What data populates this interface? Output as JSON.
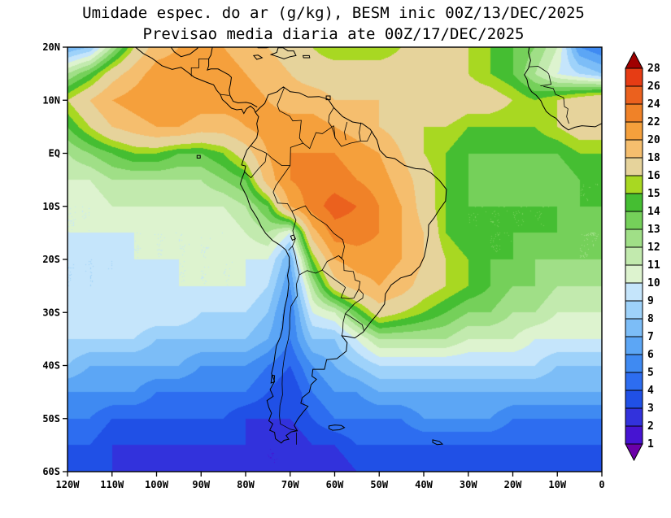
{
  "title": {
    "line1": "Umidade espec. do ar (g/kg), BESM inic 00Z/13/DEC/2025",
    "line2": "Previsao media diaria ate 00Z/17/DEC/2025"
  },
  "axes": {
    "x_labels": [
      "120W",
      "110W",
      "100W",
      "90W",
      "80W",
      "70W",
      "60W",
      "50W",
      "40W",
      "30W",
      "20W",
      "10W",
      "0"
    ],
    "x_lons": [
      -120,
      -110,
      -100,
      -90,
      -80,
      -70,
      -60,
      -50,
      -40,
      -30,
      -20,
      -10,
      0
    ],
    "y_labels": [
      "20N",
      "10N",
      "EQ",
      "10S",
      "20S",
      "30S",
      "40S",
      "50S",
      "60S"
    ],
    "y_lats": [
      20,
      10,
      0,
      -10,
      -20,
      -30,
      -40,
      -50,
      -60
    ]
  },
  "colorbar": {
    "labels": [
      "28",
      "26",
      "24",
      "22",
      "20",
      "18",
      "16",
      "15",
      "14",
      "13",
      "12",
      "11",
      "10",
      "9",
      "8",
      "7",
      "6",
      "5",
      "4",
      "3",
      "2",
      "1"
    ]
  },
  "chart_data": {
    "type": "heatmap",
    "variable": "Umidade especifica do ar",
    "units": "g/kg",
    "model": "BESM",
    "init_time": "00Z/13/DEC/2025",
    "mean_until": "00Z/17/DEC/2025",
    "lon_range": [
      -120,
      0
    ],
    "lat_range": [
      -60,
      20
    ],
    "lats": [
      20,
      15,
      10,
      5,
      0,
      -5,
      -10,
      -15,
      -20,
      -25,
      -30,
      -35,
      -40,
      -45,
      -50,
      -55,
      -60
    ],
    "lons": [
      -120,
      -115,
      -110,
      -105,
      -100,
      -95,
      -90,
      -85,
      -80,
      -75,
      -70,
      -65,
      -60,
      -55,
      -50,
      -45,
      -40,
      -35,
      -30,
      -25,
      -20,
      -15,
      -10,
      -5,
      0
    ],
    "values_g_per_kg": [
      [
        7,
        8,
        12,
        16,
        19,
        20,
        20,
        20,
        19,
        18,
        17,
        16,
        15,
        15,
        15,
        16,
        16,
        17,
        16,
        15,
        14,
        13,
        11,
        6,
        5
      ],
      [
        12,
        14,
        17,
        19,
        21,
        21,
        21,
        21,
        20,
        19,
        18,
        17,
        17,
        17,
        17,
        17,
        17,
        17,
        16,
        15,
        14,
        12,
        10,
        9,
        8
      ],
      [
        16,
        18,
        20,
        21,
        22,
        22,
        21,
        21,
        21,
        20,
        19,
        19,
        18,
        18,
        18,
        18,
        18,
        18,
        17,
        17,
        16,
        15,
        16,
        17,
        18
      ],
      [
        14,
        16,
        18,
        19,
        20,
        20,
        19,
        19,
        20,
        21,
        21,
        21,
        20,
        19,
        18,
        17,
        16,
        16,
        15,
        15,
        15,
        15,
        16,
        17,
        17
      ],
      [
        12,
        13,
        14,
        15,
        15,
        14,
        14,
        15,
        17,
        20,
        22,
        22,
        22,
        21,
        20,
        18,
        16,
        15,
        14,
        14,
        14,
        14,
        14,
        15,
        15
      ],
      [
        11,
        11,
        12,
        12,
        12,
        12,
        12,
        13,
        14,
        19,
        22,
        23,
        23,
        22,
        21,
        19,
        17,
        15,
        14,
        13,
        13,
        13,
        13,
        14,
        14
      ],
      [
        10,
        10,
        11,
        11,
        11,
        11,
        11,
        11,
        12,
        14,
        20,
        23,
        25,
        24,
        22,
        20,
        17,
        15,
        14,
        14,
        14,
        14,
        14,
        14,
        14
      ],
      [
        10,
        10,
        10,
        10,
        10,
        10,
        10,
        10,
        11,
        12,
        10,
        19,
        23,
        23,
        22,
        20,
        18,
        15,
        14,
        14,
        14,
        14,
        14,
        13,
        13
      ],
      [
        9,
        9,
        9,
        10,
        10,
        10,
        10,
        10,
        10,
        10,
        7,
        15,
        20,
        21,
        21,
        20,
        18,
        16,
        15,
        14,
        14,
        13,
        13,
        13,
        13
      ],
      [
        9,
        9,
        9,
        9,
        9,
        10,
        10,
        10,
        10,
        9,
        6,
        12,
        17,
        19,
        20,
        19,
        17,
        16,
        15,
        14,
        13,
        13,
        12,
        12,
        12
      ],
      [
        10,
        10,
        10,
        10,
        10,
        10,
        9,
        9,
        9,
        8,
        5,
        10,
        11,
        14,
        17,
        16,
        15,
        14,
        13,
        13,
        12,
        12,
        11,
        11,
        11
      ],
      [
        9,
        9,
        9,
        9,
        8,
        8,
        8,
        8,
        8,
        7,
        5,
        8,
        8,
        10,
        12,
        12,
        12,
        12,
        11,
        11,
        11,
        10,
        10,
        10,
        10
      ],
      [
        8,
        7,
        7,
        7,
        7,
        7,
        6,
        6,
        6,
        5,
        4,
        6,
        7,
        8,
        9,
        9,
        9,
        9,
        9,
        9,
        9,
        9,
        8,
        8,
        8
      ],
      [
        6,
        6,
        6,
        6,
        5,
        5,
        5,
        5,
        5,
        4,
        3,
        5,
        6,
        6,
        7,
        7,
        7,
        7,
        7,
        7,
        7,
        7,
        7,
        7,
        7
      ],
      [
        5,
        5,
        4,
        4,
        4,
        4,
        4,
        4,
        3,
        3,
        3,
        4,
        5,
        5,
        5,
        5,
        6,
        6,
        6,
        6,
        5,
        5,
        5,
        5,
        5
      ],
      [
        4,
        4,
        3,
        3,
        3,
        3,
        3,
        3,
        3,
        2,
        2,
        3,
        3,
        4,
        4,
        4,
        4,
        4,
        4,
        4,
        4,
        4,
        4,
        4,
        4
      ],
      [
        3,
        3,
        3,
        2,
        2,
        2,
        2,
        2,
        2,
        2,
        2,
        2,
        2,
        3,
        3,
        3,
        3,
        3,
        3,
        3,
        3,
        3,
        3,
        3,
        3
      ]
    ],
    "contour_levels": [
      1,
      2,
      3,
      4,
      5,
      6,
      7,
      8,
      9,
      10,
      11,
      12,
      13,
      14,
      15,
      16,
      18,
      20,
      22,
      24,
      26,
      28
    ],
    "palette_hex": [
      "#6a00a8",
      "#4614d2",
      "#3232dc",
      "#2050e6",
      "#2d6df0",
      "#3f8af2",
      "#5ca6f5",
      "#7cbdf7",
      "#9ed2fa",
      "#c5e5fb",
      "#ddf3cf",
      "#c2eaae",
      "#a0df87",
      "#75d05a",
      "#45be32",
      "#a8d822",
      "#e6d39b",
      "#f5be6e",
      "#f5a03c",
      "#f08228",
      "#eb611e",
      "#e63c14",
      "#a00000"
    ],
    "legend_position": "right",
    "grid": false
  }
}
